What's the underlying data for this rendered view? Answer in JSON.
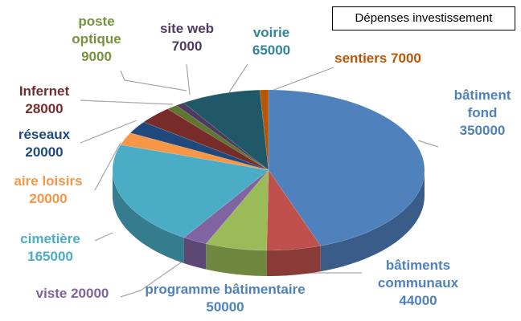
{
  "chart_data": {
    "type": "pie",
    "title": "Dépenses investissement",
    "categories": [
      "bâtiment fond",
      "bâtiments communaux",
      "programme bâtimentaire",
      "viste",
      "cimetière",
      "aire loisirs",
      "réseaux",
      "Infernet",
      "poste optique",
      "site web",
      "voirie",
      "sentiers"
    ],
    "values": [
      350000,
      44000,
      50000,
      20000,
      165000,
      20000,
      20000,
      28000,
      9000,
      7000,
      65000,
      7000
    ],
    "colors": [
      "#4f81bd",
      "#c0504d",
      "#9bbb59",
      "#8064a2",
      "#4bacc6",
      "#f79646",
      "#1f497d",
      "#772c2a",
      "#5f7530",
      "#4d3b62",
      "#205867",
      "#b65708"
    ],
    "label_colors": [
      "#4f81bd",
      "#4f81bd",
      "#4f81bd",
      "#8064a2",
      "#4bacc6",
      "#f79646",
      "#1f497d",
      "#772c2a",
      "#77933c",
      "#4d3b62",
      "#31859c",
      "#b65708"
    ]
  }
}
